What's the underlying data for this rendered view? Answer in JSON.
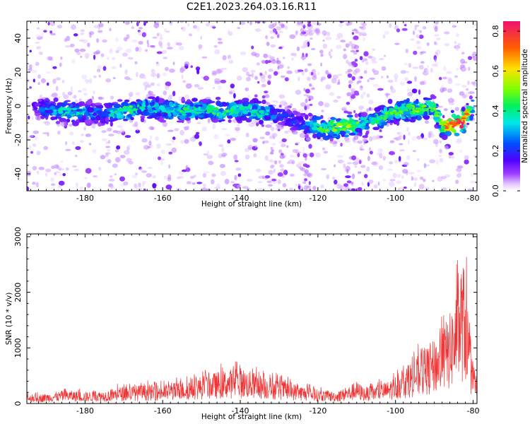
{
  "title": "C2E1.2023.264.03.16.R11",
  "chart_data": [
    {
      "type": "heatmap",
      "name": "spectrogram",
      "xlabel": "Height of straight line (km)",
      "ylabel": "Frequency (Hz)",
      "xlim": [
        -195,
        -79
      ],
      "ylim": [
        -50,
        50
      ],
      "xticks": [
        -180,
        -160,
        -140,
        -120,
        -100,
        -80
      ],
      "yticks": [
        -40,
        -20,
        0,
        20,
        40
      ],
      "colorbar": {
        "label": "Normalized spectral amplitude",
        "range": [
          0,
          0.85
        ],
        "ticks": [
          0.0,
          0.2,
          0.4,
          0.6,
          0.8
        ]
      },
      "ridge": [
        {
          "x": -190,
          "freq": -2,
          "amp": 0.25
        },
        {
          "x": -185,
          "freq": -3,
          "amp": 0.38
        },
        {
          "x": -180,
          "freq": -4,
          "amp": 0.3
        },
        {
          "x": -175,
          "freq": -5,
          "amp": 0.22
        },
        {
          "x": -171,
          "freq": -3,
          "amp": 0.42
        },
        {
          "x": -165,
          "freq": -1,
          "amp": 0.35
        },
        {
          "x": -160,
          "freq": -2,
          "amp": 0.32
        },
        {
          "x": -155,
          "freq": -3,
          "amp": 0.38
        },
        {
          "x": -150,
          "freq": -2,
          "amp": 0.34
        },
        {
          "x": -145,
          "freq": -3,
          "amp": 0.4
        },
        {
          "x": -140,
          "freq": -2,
          "amp": 0.36
        },
        {
          "x": -135,
          "freq": -4,
          "amp": 0.38
        },
        {
          "x": -130,
          "freq": -5,
          "amp": 0.22
        },
        {
          "x": -125,
          "freq": -10,
          "amp": 0.2
        },
        {
          "x": -118,
          "freq": -13,
          "amp": 0.45
        },
        {
          "x": -112,
          "freq": -12,
          "amp": 0.48
        },
        {
          "x": -108,
          "freq": -10,
          "amp": 0.35
        },
        {
          "x": -104,
          "freq": -7,
          "amp": 0.38
        },
        {
          "x": -100,
          "freq": -3,
          "amp": 0.42
        },
        {
          "x": -95,
          "freq": -2,
          "amp": 0.45
        },
        {
          "x": -90,
          "freq": -1,
          "amp": 0.4
        },
        {
          "x": -88,
          "freq": -12,
          "amp": 0.5
        },
        {
          "x": -86,
          "freq": -11,
          "amp": 0.75
        },
        {
          "x": -83,
          "freq": -10,
          "amp": 0.8
        },
        {
          "x": -80,
          "freq": 0,
          "amp": 0.35
        }
      ]
    },
    {
      "type": "line",
      "name": "snr",
      "xlabel": "Height of straight line (km)",
      "ylabel": "SNR (10 * v/v)",
      "xlim": [
        -195,
        -79
      ],
      "ylim": [
        0,
        3050
      ],
      "xticks": [
        -180,
        -160,
        -140,
        -120,
        -100,
        -80
      ],
      "yticks": [
        0,
        1000,
        2000,
        3000
      ],
      "color": "#f03232",
      "envelope": {
        "x": [
          -195,
          -190,
          -185,
          -180,
          -175,
          -170,
          -165,
          -160,
          -155,
          -150,
          -145,
          -140,
          -135,
          -130,
          -125,
          -120,
          -115,
          -112,
          -110,
          -108,
          -105,
          -102,
          -100,
          -98,
          -95,
          -92,
          -90,
          -88,
          -86,
          -84,
          -83,
          -82,
          -81,
          -80,
          -79
        ],
        "y": [
          150,
          170,
          230,
          200,
          220,
          300,
          320,
          330,
          380,
          480,
          560,
          620,
          500,
          420,
          320,
          240,
          200,
          300,
          380,
          280,
          320,
          380,
          480,
          600,
          780,
          950,
          1100,
          1280,
          1550,
          2000,
          2450,
          2350,
          1300,
          550,
          350
        ]
      }
    }
  ]
}
